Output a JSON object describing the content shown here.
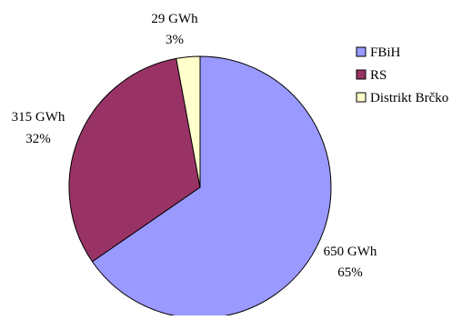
{
  "chart_data": {
    "type": "pie",
    "title": "",
    "slices": [
      {
        "name": "FBiH",
        "value": 650,
        "unit": "GWh",
        "value_label": "650 GWh",
        "percent_label": "65%",
        "color": "#9999ff"
      },
      {
        "name": "RS",
        "value": 315,
        "unit": "GWh",
        "value_label": "315 GWh",
        "percent_label": "32%",
        "color": "#993366"
      },
      {
        "name": "Distrikt Brčko",
        "value": 29,
        "unit": "GWh",
        "value_label": "29 GWh",
        "percent_label": "3%",
        "color": "#ffffcc"
      }
    ],
    "start_angle": "12 o'clock",
    "direction": "clockwise",
    "legend_position": "right",
    "slice_border_color": "#000000"
  }
}
